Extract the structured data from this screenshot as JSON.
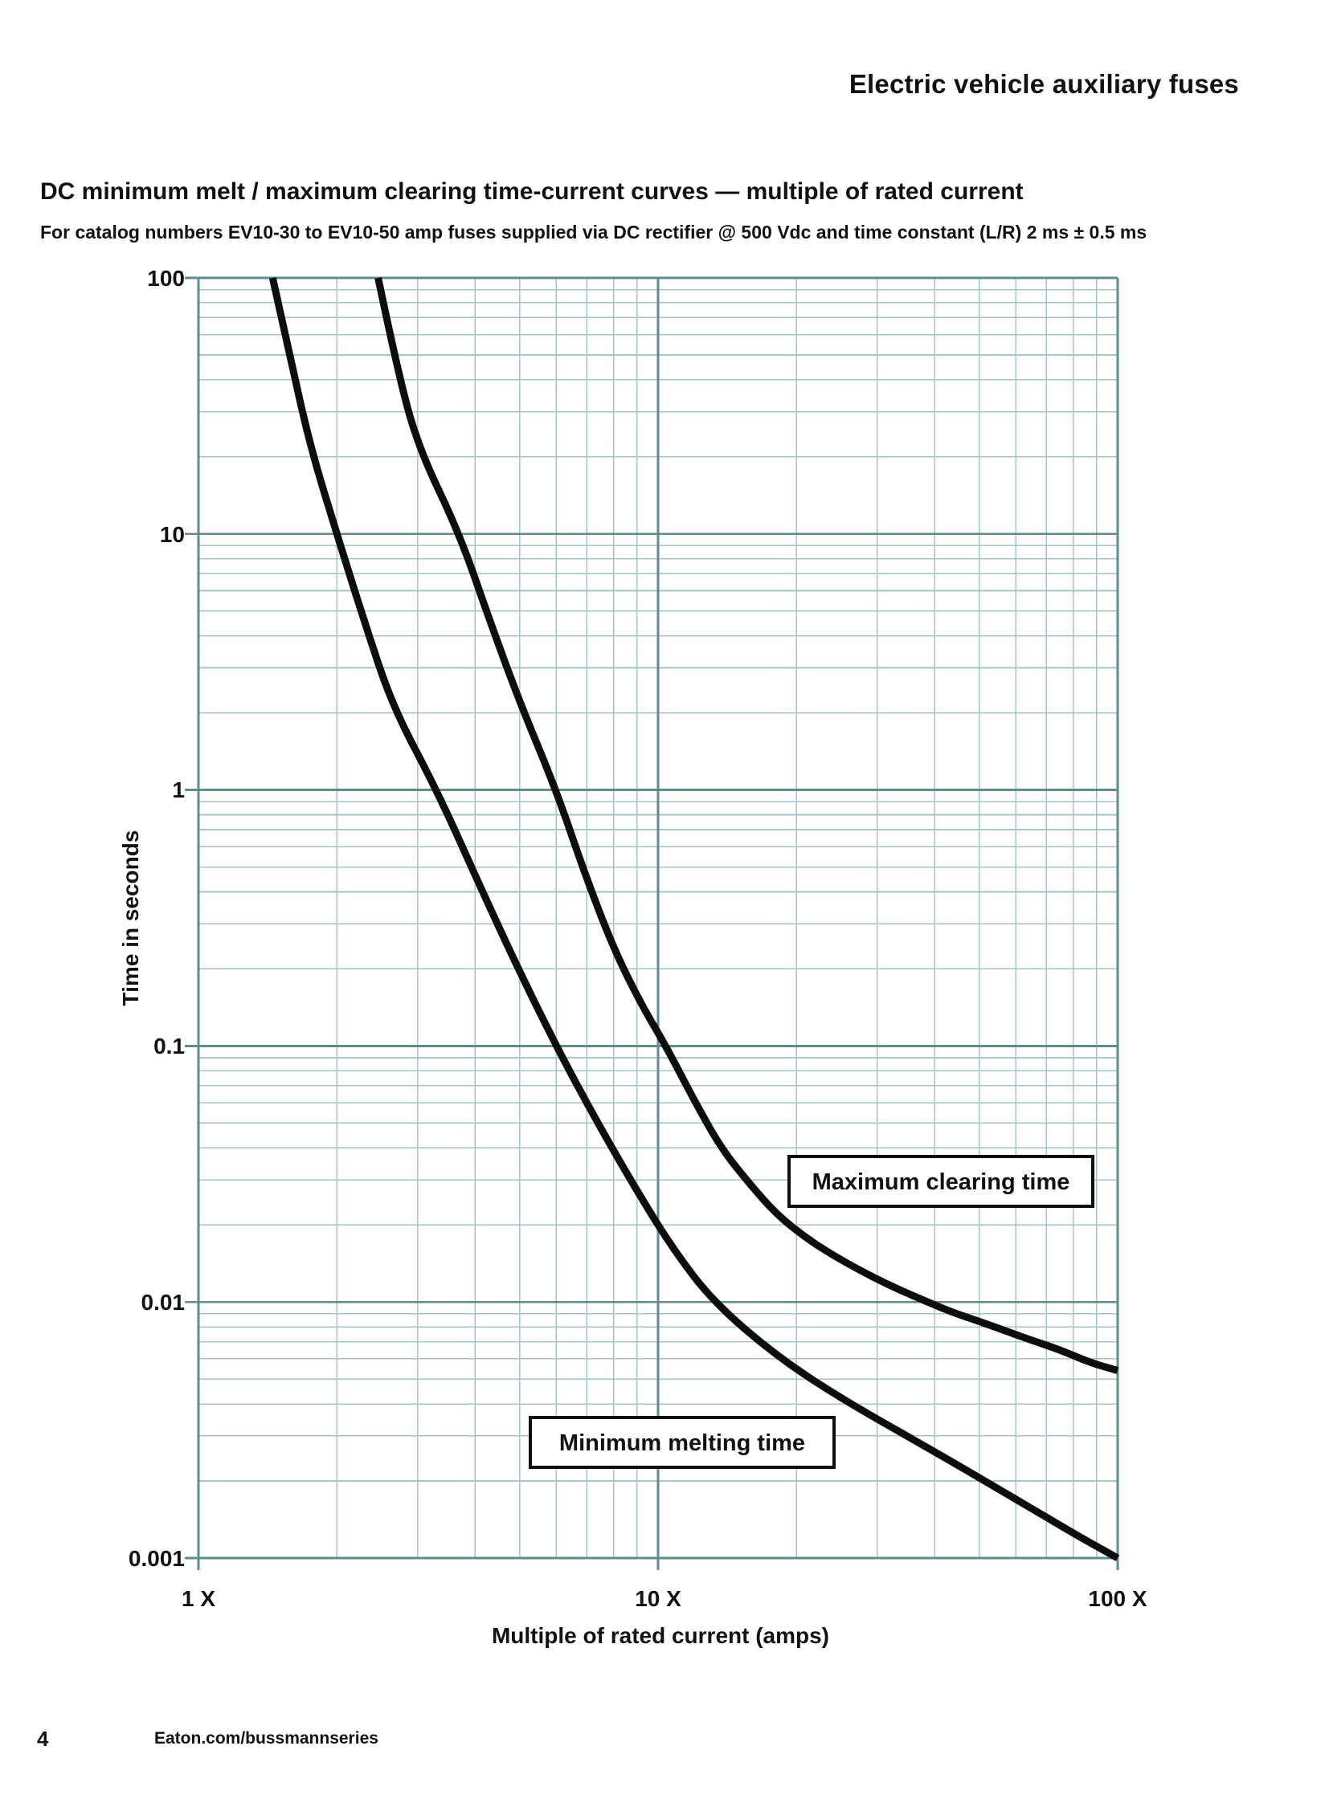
{
  "page": {
    "header": "Electric vehicle auxiliary fuses",
    "footer": {
      "page_number": "4",
      "website": "Eaton.com/bussmannseries"
    }
  },
  "heading": {
    "title": "DC minimum melt / maximum clearing time-current curves — multiple of rated current",
    "subtitle": "For catalog numbers EV10-30 to EV10-50 amp fuses supplied via DC rectifier @ 500 Vdc and time constant (L/R) 2 ms ± 0.5 ms"
  },
  "chart_data": {
    "type": "line",
    "title": "",
    "xlabel": "Multiple of rated current (amps)",
    "ylabel": "Time in seconds",
    "x_scale": "log",
    "y_scale": "log",
    "xlim": [
      1,
      100
    ],
    "ylim": [
      0.001,
      100
    ],
    "x_tick_values": [
      1,
      10,
      100
    ],
    "x_tick_labels": [
      "1 X",
      "10 X",
      "100 X"
    ],
    "y_tick_values": [
      100,
      10,
      1,
      0.1,
      0.01,
      0.001
    ],
    "y_tick_labels": [
      "100",
      "10",
      "1",
      "0.1",
      "0.01",
      "0.001"
    ],
    "grid": "log major + minor, full frame",
    "legend_position": "inline boxed labels",
    "colors": {
      "grid_major": "#5f8c8c",
      "grid_minor": "#a3c6c6",
      "curve": "#0d0d0d",
      "background": "#ffffff"
    },
    "series": [
      {
        "name": "Minimum melting time",
        "points": [
          [
            1.45,
            100
          ],
          [
            1.58,
            50
          ],
          [
            1.75,
            22
          ],
          [
            2.0,
            10
          ],
          [
            2.3,
            4.5
          ],
          [
            2.65,
            2.1
          ],
          [
            3.3,
            1
          ],
          [
            4.1,
            0.42
          ],
          [
            4.9,
            0.21
          ],
          [
            6.0,
            0.1
          ],
          [
            7.3,
            0.052
          ],
          [
            8.9,
            0.028
          ],
          [
            10.8,
            0.016
          ],
          [
            13.2,
            0.01
          ],
          [
            18,
            0.0062
          ],
          [
            25,
            0.0042
          ],
          [
            40,
            0.0026
          ],
          [
            60,
            0.0017
          ],
          [
            80,
            0.00125
          ],
          [
            100,
            0.001
          ]
        ]
      },
      {
        "name": "Maximum clearing time",
        "points": [
          [
            2.46,
            100
          ],
          [
            2.7,
            45
          ],
          [
            3.0,
            22
          ],
          [
            3.7,
            10
          ],
          [
            4.3,
            4.6
          ],
          [
            5.0,
            2.2
          ],
          [
            6.0,
            1
          ],
          [
            6.9,
            0.48
          ],
          [
            8.0,
            0.24
          ],
          [
            9.2,
            0.145
          ],
          [
            10.4,
            0.1
          ],
          [
            12.0,
            0.061
          ],
          [
            13.7,
            0.04
          ],
          [
            15.8,
            0.029
          ],
          [
            18.1,
            0.022
          ],
          [
            20.8,
            0.018
          ],
          [
            23.9,
            0.0153
          ],
          [
            27.5,
            0.0133
          ],
          [
            31.3,
            0.0118
          ],
          [
            35.8,
            0.0106
          ],
          [
            43,
            0.0092
          ],
          [
            51,
            0.0083
          ],
          [
            62,
            0.0073
          ],
          [
            75,
            0.0065
          ],
          [
            87,
            0.0058
          ],
          [
            100,
            0.0054
          ]
        ]
      }
    ],
    "annotations": [
      {
        "label": "Maximum clearing time",
        "anchor_multiple": 41.3,
        "anchor_seconds": 0.029
      },
      {
        "label": "Minimum melting time",
        "anchor_multiple": 11.3,
        "anchor_seconds": 0.00275
      }
    ]
  }
}
